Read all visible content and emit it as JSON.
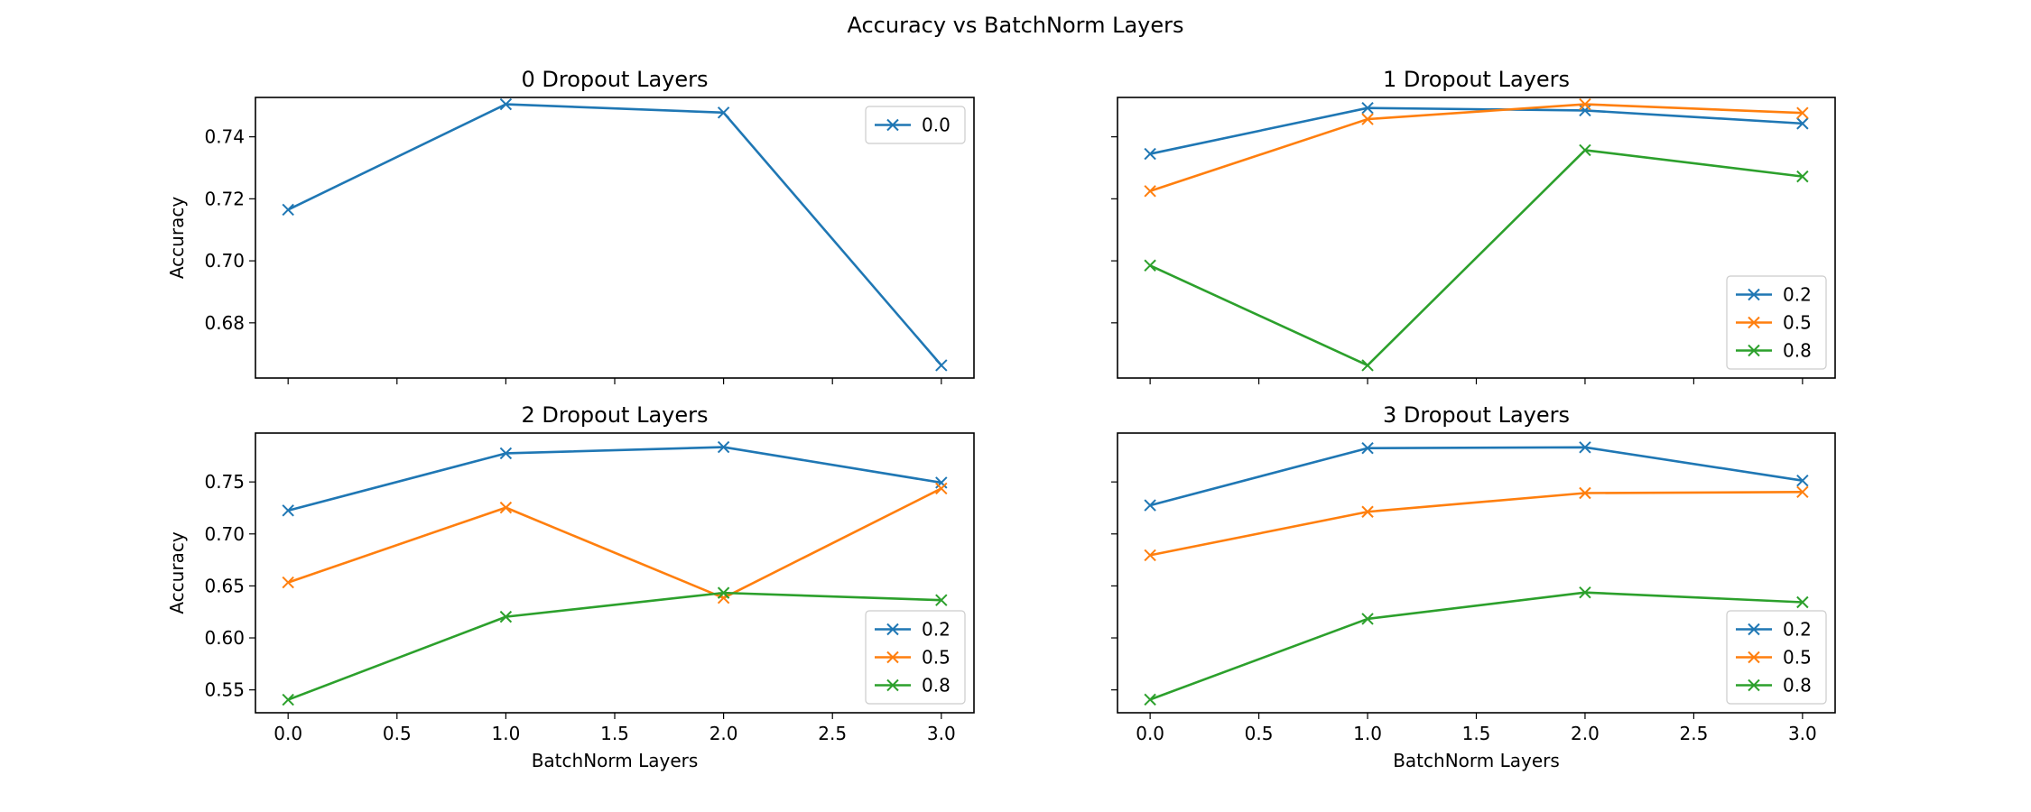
{
  "figure": {
    "title": "Accuracy vs BatchNorm Layers"
  },
  "chart_data": [
    {
      "type": "line",
      "title": "0 Dropout Layers",
      "xlabel": "",
      "ylabel": "Accuracy",
      "x": [
        0,
        1,
        2,
        3
      ],
      "xlim": [
        -0.15,
        3.15
      ],
      "ylim": [
        0.6622,
        0.7527
      ],
      "xticks": [],
      "yticks": [
        0.68,
        0.7,
        0.72,
        0.74
      ],
      "ytick_labels": [
        "0.68",
        "0.70",
        "0.72",
        "0.74"
      ],
      "legend": "top-right",
      "series": [
        {
          "name": "0.0",
          "color": "#1f77b4",
          "values": [
            0.7165,
            0.7505,
            0.7478,
            0.6663
          ]
        }
      ]
    },
    {
      "type": "line",
      "title": "1 Dropout Layers",
      "xlabel": "",
      "ylabel": "",
      "x": [
        0,
        1,
        2,
        3
      ],
      "xlim": [
        -0.15,
        3.15
      ],
      "ylim": [
        0.6622,
        0.7527
      ],
      "xticks": [],
      "yticks": [
        0.68,
        0.7,
        0.72,
        0.74
      ],
      "ytick_labels": [],
      "legend": "bottom-right",
      "series": [
        {
          "name": "0.2",
          "color": "#1f77b4",
          "values": [
            0.7345,
            0.7493,
            0.7485,
            0.7443
          ]
        },
        {
          "name": "0.5",
          "color": "#ff7f0e",
          "values": [
            0.7225,
            0.7457,
            0.7505,
            0.7477
          ]
        },
        {
          "name": "0.8",
          "color": "#2ca02c",
          "values": [
            0.6985,
            0.6663,
            0.7357,
            0.7272
          ]
        }
      ]
    },
    {
      "type": "line",
      "title": "2 Dropout Layers",
      "xlabel": "BatchNorm Layers",
      "ylabel": "Accuracy",
      "x": [
        0,
        1,
        2,
        3
      ],
      "xlim": [
        -0.15,
        3.15
      ],
      "ylim": [
        0.528,
        0.797
      ],
      "xticks": [
        0,
        0.5,
        1,
        1.5,
        2,
        2.5,
        3
      ],
      "xtick_labels": [
        "0.0",
        "0.5",
        "1.0",
        "1.5",
        "2.0",
        "2.5",
        "3.0"
      ],
      "yticks": [
        0.55,
        0.6,
        0.65,
        0.7,
        0.75
      ],
      "ytick_labels": [
        "0.55",
        "0.60",
        "0.65",
        "0.70",
        "0.75"
      ],
      "legend": "bottom-right",
      "series": [
        {
          "name": "0.2",
          "color": "#1f77b4",
          "values": [
            0.7225,
            0.7775,
            0.7835,
            0.7493
          ]
        },
        {
          "name": "0.5",
          "color": "#ff7f0e",
          "values": [
            0.6533,
            0.7253,
            0.6385,
            0.7437
          ]
        },
        {
          "name": "0.8",
          "color": "#2ca02c",
          "values": [
            0.5405,
            0.6203,
            0.6433,
            0.6363
          ]
        }
      ]
    },
    {
      "type": "line",
      "title": "3 Dropout Layers",
      "xlabel": "BatchNorm Layers",
      "ylabel": "",
      "x": [
        0,
        1,
        2,
        3
      ],
      "xlim": [
        -0.15,
        3.15
      ],
      "ylim": [
        0.528,
        0.797
      ],
      "xticks": [
        0,
        0.5,
        1,
        1.5,
        2,
        2.5,
        3
      ],
      "xtick_labels": [
        "0.0",
        "0.5",
        "1.0",
        "1.5",
        "2.0",
        "2.5",
        "3.0"
      ],
      "yticks": [
        0.55,
        0.6,
        0.65,
        0.7,
        0.75
      ],
      "ytick_labels": [],
      "legend": "bottom-right",
      "series": [
        {
          "name": "0.2",
          "color": "#1f77b4",
          "values": [
            0.7275,
            0.7825,
            0.7833,
            0.7513
          ]
        },
        {
          "name": "0.5",
          "color": "#ff7f0e",
          "values": [
            0.6795,
            0.7213,
            0.7393,
            0.7403
          ]
        },
        {
          "name": "0.8",
          "color": "#2ca02c",
          "values": [
            0.5407,
            0.6183,
            0.6437,
            0.6343
          ]
        }
      ]
    }
  ]
}
